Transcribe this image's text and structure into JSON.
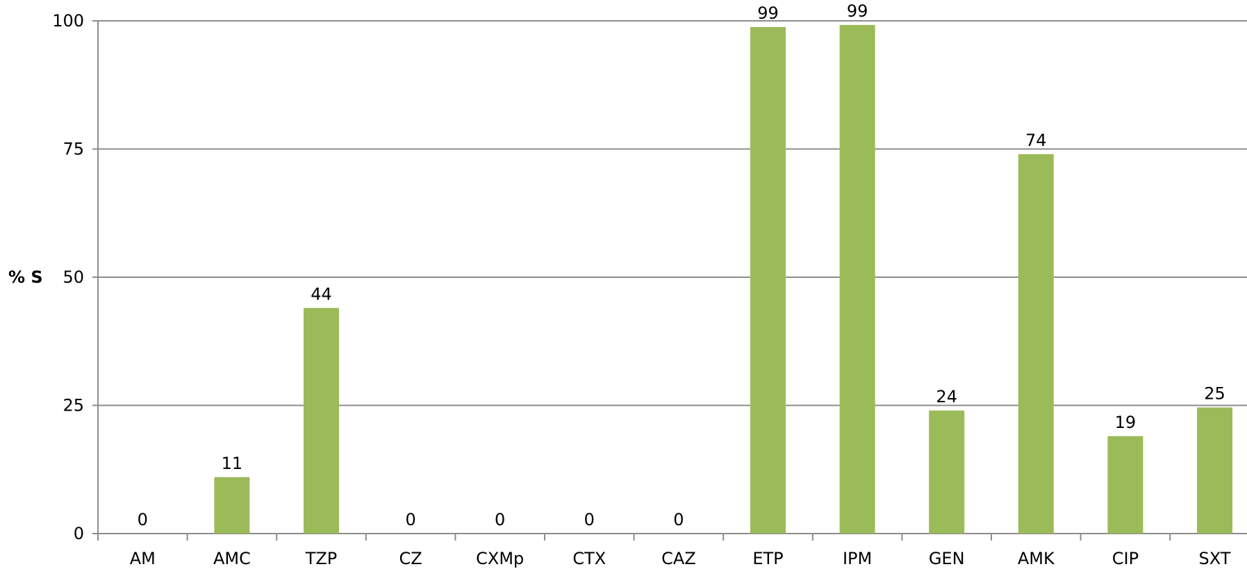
{
  "chart_data": {
    "type": "bar",
    "title": "",
    "xlabel": "",
    "ylabel": "% S",
    "ylim": [
      0,
      100
    ],
    "yticks": [
      "0",
      "25",
      "50",
      "75",
      "100"
    ],
    "grid": "horizontal",
    "categories": [
      "AM",
      "AMC",
      "TZP",
      "CZ",
      "CXMp",
      "CTX",
      "CAZ",
      "ETP",
      "IPM",
      "GEN",
      "AMK",
      "CIP",
      "SXT"
    ],
    "values": [
      0,
      11,
      44,
      0,
      0,
      0,
      0,
      98.8,
      99.2,
      24,
      74,
      19,
      24.6
    ],
    "data_labels": [
      "0",
      "11",
      "44",
      "0",
      "0",
      "0",
      "0",
      "99",
      "99",
      "24",
      "74",
      "19",
      "25"
    ],
    "colors": {
      "bar": "#9BBB59",
      "grid": "#8c8c8c",
      "axis": "#8c8c8c"
    }
  }
}
